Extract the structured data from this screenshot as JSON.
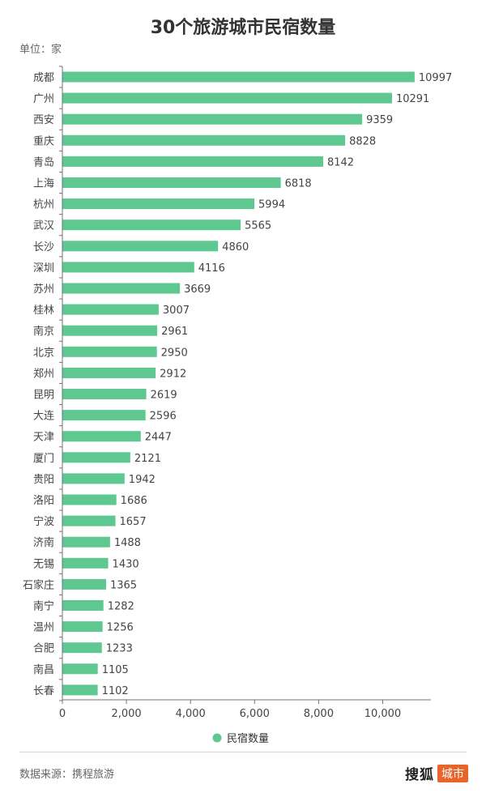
{
  "title": "30个旅游城市民宿数量",
  "unit_label": "单位：家",
  "source": "数据来源：携程旅游",
  "brand": {
    "main": "搜狐",
    "tag": "城市"
  },
  "colors": {
    "bar": "#5fc891",
    "axis": "#6e7079",
    "tick_text": "#444"
  },
  "chart_data": {
    "type": "bar",
    "orientation": "horizontal",
    "categories": [
      "成都",
      "广州",
      "西安",
      "重庆",
      "青岛",
      "上海",
      "杭州",
      "武汉",
      "长沙",
      "深圳",
      "苏州",
      "桂林",
      "南京",
      "北京",
      "郑州",
      "昆明",
      "大连",
      "天津",
      "厦门",
      "贵阳",
      "洛阳",
      "宁波",
      "济南",
      "无锡",
      "石家庄",
      "南宁",
      "温州",
      "合肥",
      "南昌",
      "长春"
    ],
    "series": [
      {
        "name": "民宿数量",
        "values": [
          10997,
          10291,
          9359,
          8828,
          8142,
          6818,
          5994,
          5565,
          4860,
          4116,
          3669,
          3007,
          2961,
          2950,
          2912,
          2619,
          2596,
          2447,
          2121,
          1942,
          1686,
          1657,
          1488,
          1430,
          1365,
          1282,
          1256,
          1233,
          1105,
          1102
        ]
      }
    ],
    "xlim": [
      0,
      11000
    ],
    "xticks": [
      0,
      2000,
      4000,
      6000,
      8000,
      10000
    ],
    "xtick_labels": [
      "0",
      "2,000",
      "4,000",
      "6,000",
      "8,000",
      "10,000"
    ],
    "legend": "bottom-center",
    "grid": false
  }
}
